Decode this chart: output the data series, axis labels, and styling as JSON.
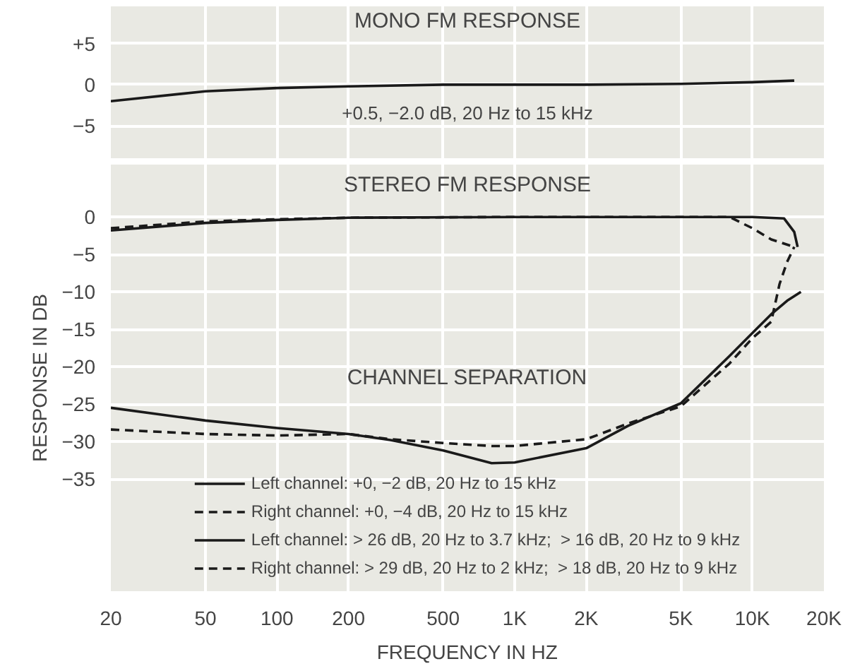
{
  "chart_data": [
    {
      "type": "line",
      "title": "MONO FM RESPONSE",
      "annotations": [
        "+0.5, −2.0 dB, 20 Hz to 15 kHz"
      ],
      "log": "x",
      "grid": true,
      "legend": false,
      "tick_labels": "y",
      "line_style": "solid",
      "xlim": [
        20,
        20000
      ],
      "xticks": [
        {
          "value": 20,
          "label": null
        },
        {
          "value": 50,
          "label": null
        },
        {
          "value": 100,
          "label": null
        },
        {
          "value": 200,
          "label": null
        },
        {
          "value": 500,
          "label": null
        },
        {
          "value": 1000,
          "label": null
        },
        {
          "value": 2000,
          "label": null
        },
        {
          "value": 5000,
          "label": null
        },
        {
          "value": 10000,
          "label": null
        },
        {
          "value": 20000,
          "label": null
        }
      ],
      "ylim": [
        -9,
        9.5
      ],
      "yticks": [
        {
          "value": 5,
          "label": "+5"
        },
        0,
        {
          "value": -5,
          "label": "−5"
        }
      ],
      "series": [
        {
          "color": "#1a1a1a",
          "x": [
            20,
            50,
            100,
            200,
            500,
            1000,
            2000,
            5000,
            10000,
            15000
          ],
          "values": [
            -2.0,
            -0.8,
            -0.4,
            -0.2,
            0,
            0,
            0,
            0.1,
            0.3,
            0.5
          ]
        }
      ]
    },
    {
      "type": "line",
      "title": "STEREO FM RESPONSE",
      "annotations": [
        "CHANNEL SEPARATION"
      ],
      "xlabel": "FREQUENCY IN HZ",
      "ylabel": "RESPONSE IN DB",
      "log": "x",
      "grid": true,
      "legend": "bottom",
      "xlim": [
        20,
        20000
      ],
      "xticks": [
        20,
        50,
        100,
        200,
        500,
        {
          "value": 1000,
          "label": "1K"
        },
        {
          "value": 2000,
          "label": "2K"
        },
        {
          "value": 5000,
          "label": "5K"
        },
        {
          "value": 10000,
          "label": "10K"
        },
        {
          "value": 20000,
          "label": "20K"
        }
      ],
      "ylim": [
        -50,
        7
      ],
      "yticks": [
        0,
        {
          "value": -5,
          "label": "−5"
        },
        {
          "value": -10,
          "label": "−10"
        },
        {
          "value": -15,
          "label": "−15"
        },
        {
          "value": -20,
          "label": "−20"
        },
        {
          "value": -25,
          "label": "−25"
        },
        {
          "value": -30,
          "label": "−30"
        },
        {
          "value": -35,
          "label": "−35"
        }
      ],
      "series": [
        {
          "name": "Left channel: +0, −2 dB, 20 Hz to 15 kHz",
          "color": "#1a1a1a",
          "line_style": "solid",
          "x": [
            20,
            50,
            100,
            200,
            1000,
            10000,
            13600,
            15000,
            15500
          ],
          "values": [
            -1.8,
            -0.8,
            -0.4,
            -0.1,
            0,
            0,
            -0.2,
            -2,
            -4
          ]
        },
        {
          "name": "Right channel: +0, −4 dB, 20 Hz to 15 kHz",
          "color": "#1a1a1a",
          "line_style": "dashed",
          "x": [
            20,
            50,
            100,
            200,
            1000,
            5000,
            8000,
            10000,
            12000,
            15000
          ],
          "values": [
            -1.5,
            -0.6,
            -0.3,
            -0.1,
            0,
            0,
            0,
            -1.5,
            -3,
            -4
          ]
        },
        {
          "name": "Left channel: > 26 dB, 20 Hz to 3.7 kHz;  > 16 dB, 20 Hz to 9 kHz",
          "color": "#1a1a1a",
          "line_style": "solid",
          "x": [
            20,
            50,
            100,
            200,
            300,
            500,
            800,
            1000,
            2000,
            3000,
            5000,
            8000,
            10000,
            12000,
            14000,
            16000
          ],
          "values": [
            -25.5,
            -27.2,
            -28.2,
            -29,
            -29.8,
            -31.2,
            -32.9,
            -32.8,
            -30.9,
            -27.9,
            -24.9,
            -18.6,
            -15.5,
            -13,
            -11.2,
            -10
          ]
        },
        {
          "name": "Right channel: > 29 dB, 20 Hz to 2 kHz;  > 18 dB, 20 Hz to 9 kHz",
          "color": "#1a1a1a",
          "line_style": "dashed",
          "x": [
            20,
            50,
            100,
            200,
            300,
            500,
            800,
            1000,
            2000,
            3000,
            5000,
            8000,
            10000,
            12000,
            13000,
            14000,
            15000
          ],
          "values": [
            -28.4,
            -29,
            -29.2,
            -29,
            -29.7,
            -30.2,
            -30.6,
            -30.6,
            -29.7,
            -27.6,
            -25.3,
            -19.6,
            -16.2,
            -14,
            -9,
            -6,
            -4
          ]
        }
      ]
    }
  ]
}
